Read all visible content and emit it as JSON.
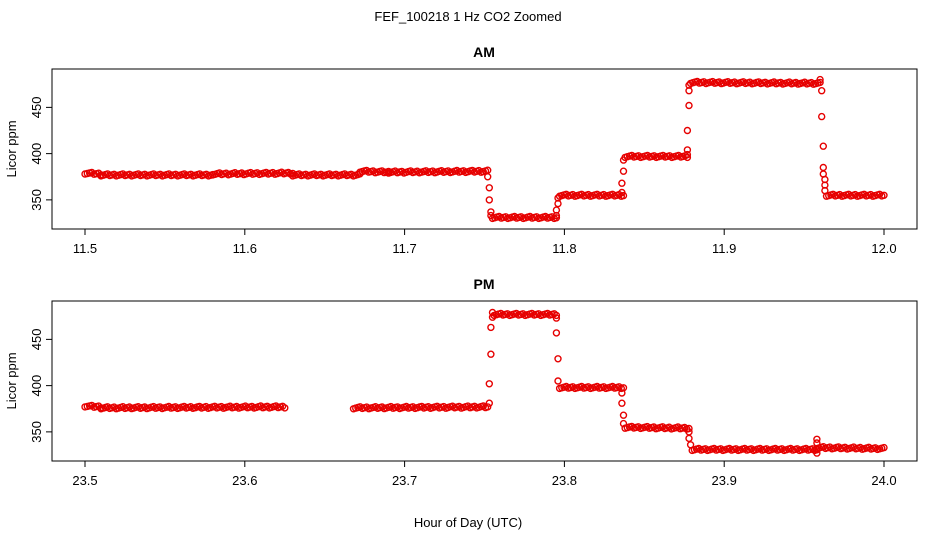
{
  "figure_title": "FEF_100218  1 Hz CO2 Zoomed",
  "x_axis_label": "Hour of Day (UTC)",
  "series_color": "#e60000",
  "chart_data": [
    {
      "type": "scatter",
      "title": "AM",
      "xlabel": "",
      "ylabel": "Licor ppm",
      "xlim": [
        11.5,
        12.0
      ],
      "ylim": [
        325,
        485
      ],
      "xticks": [
        11.5,
        11.6,
        11.7,
        11.8,
        11.9,
        12.0
      ],
      "xtick_labels": [
        "11.5",
        "11.6",
        "11.7",
        "11.8",
        "11.9",
        "12.0"
      ],
      "yticks": [
        350,
        400,
        450
      ],
      "ytick_labels": [
        "350",
        "400",
        "450"
      ],
      "marker": "open-circle",
      "segments": [
        {
          "x0": 11.5,
          "x1": 11.51,
          "y0": 379,
          "y1": 378
        },
        {
          "x0": 11.51,
          "x1": 11.58,
          "y0": 377,
          "y1": 377
        },
        {
          "x0": 11.58,
          "x1": 11.63,
          "y0": 378,
          "y1": 379
        },
        {
          "x0": 11.63,
          "x1": 11.672,
          "y0": 377,
          "y1": 377
        },
        {
          "x0": 11.672,
          "x1": 11.69,
          "y0": 381,
          "y1": 380
        },
        {
          "x0": 11.69,
          "x1": 11.752,
          "y0": 380,
          "y1": 381
        },
        {
          "x0": 11.755,
          "x1": 11.795,
          "y0": 331,
          "y1": 331
        },
        {
          "x0": 11.797,
          "x1": 11.837,
          "y0": 355,
          "y1": 355
        },
        {
          "x0": 11.838,
          "x1": 11.877,
          "y0": 397,
          "y1": 397
        },
        {
          "x0": 11.879,
          "x1": 11.96,
          "y0": 477,
          "y1": 476
        },
        {
          "x0": 11.964,
          "x1": 12.0,
          "y0": 355,
          "y1": 355
        }
      ],
      "transitions": [
        {
          "x": 11.752,
          "y": 375
        },
        {
          "x": 11.753,
          "y": 363
        },
        {
          "x": 11.753,
          "y": 350
        },
        {
          "x": 11.754,
          "y": 337
        },
        {
          "x": 11.754,
          "y": 333
        },
        {
          "x": 11.795,
          "y": 333
        },
        {
          "x": 11.795,
          "y": 339
        },
        {
          "x": 11.796,
          "y": 346
        },
        {
          "x": 11.796,
          "y": 352
        },
        {
          "x": 11.836,
          "y": 358
        },
        {
          "x": 11.836,
          "y": 368
        },
        {
          "x": 11.837,
          "y": 381
        },
        {
          "x": 11.837,
          "y": 393
        },
        {
          "x": 11.877,
          "y": 399
        },
        {
          "x": 11.877,
          "y": 404
        },
        {
          "x": 11.877,
          "y": 425
        },
        {
          "x": 11.878,
          "y": 452
        },
        {
          "x": 11.878,
          "y": 468
        },
        {
          "x": 11.878,
          "y": 474
        },
        {
          "x": 11.96,
          "y": 480
        },
        {
          "x": 11.961,
          "y": 468
        },
        {
          "x": 11.961,
          "y": 440
        },
        {
          "x": 11.962,
          "y": 408
        },
        {
          "x": 11.962,
          "y": 385
        },
        {
          "x": 11.962,
          "y": 378
        },
        {
          "x": 11.963,
          "y": 372
        },
        {
          "x": 11.963,
          "y": 366
        },
        {
          "x": 11.963,
          "y": 360
        }
      ]
    },
    {
      "type": "scatter",
      "title": "PM",
      "xlabel": "Hour of Day (UTC)",
      "ylabel": "Licor ppm",
      "xlim": [
        23.5,
        24.0
      ],
      "ylim": [
        325,
        485
      ],
      "xticks": [
        23.5,
        23.6,
        23.7,
        23.8,
        23.9,
        24.0
      ],
      "xtick_labels": [
        "23.5",
        "23.6",
        "23.7",
        "23.8",
        "23.9",
        "24.0"
      ],
      "yticks": [
        350,
        400,
        450
      ],
      "ytick_labels": [
        "350",
        "400",
        "450"
      ],
      "marker": "open-circle",
      "segments": [
        {
          "x0": 23.5,
          "x1": 23.51,
          "y0": 378,
          "y1": 377
        },
        {
          "x0": 23.51,
          "x1": 23.625,
          "y0": 376,
          "y1": 377
        },
        {
          "x0": 23.668,
          "x1": 23.752,
          "y0": 376,
          "y1": 377
        },
        {
          "x0": 23.756,
          "x1": 23.795,
          "y0": 477,
          "y1": 477
        },
        {
          "x0": 23.797,
          "x1": 23.837,
          "y0": 398,
          "y1": 398
        },
        {
          "x0": 23.838,
          "x1": 23.878,
          "y0": 355,
          "y1": 354
        },
        {
          "x0": 23.88,
          "x1": 23.958,
          "y0": 331,
          "y1": 331
        },
        {
          "x0": 23.958,
          "x1": 24.0,
          "y0": 333,
          "y1": 332
        }
      ],
      "transitions": [
        {
          "x": 23.753,
          "y": 381
        },
        {
          "x": 23.753,
          "y": 402
        },
        {
          "x": 23.754,
          "y": 434
        },
        {
          "x": 23.754,
          "y": 463
        },
        {
          "x": 23.755,
          "y": 474
        },
        {
          "x": 23.755,
          "y": 479
        },
        {
          "x": 23.795,
          "y": 473
        },
        {
          "x": 23.795,
          "y": 457
        },
        {
          "x": 23.796,
          "y": 429
        },
        {
          "x": 23.796,
          "y": 405
        },
        {
          "x": 23.836,
          "y": 392
        },
        {
          "x": 23.836,
          "y": 381
        },
        {
          "x": 23.837,
          "y": 368
        },
        {
          "x": 23.837,
          "y": 359
        },
        {
          "x": 23.878,
          "y": 350
        },
        {
          "x": 23.878,
          "y": 343
        },
        {
          "x": 23.879,
          "y": 336
        },
        {
          "x": 23.958,
          "y": 342
        },
        {
          "x": 23.958,
          "y": 338
        },
        {
          "x": 23.958,
          "y": 327
        }
      ]
    }
  ]
}
